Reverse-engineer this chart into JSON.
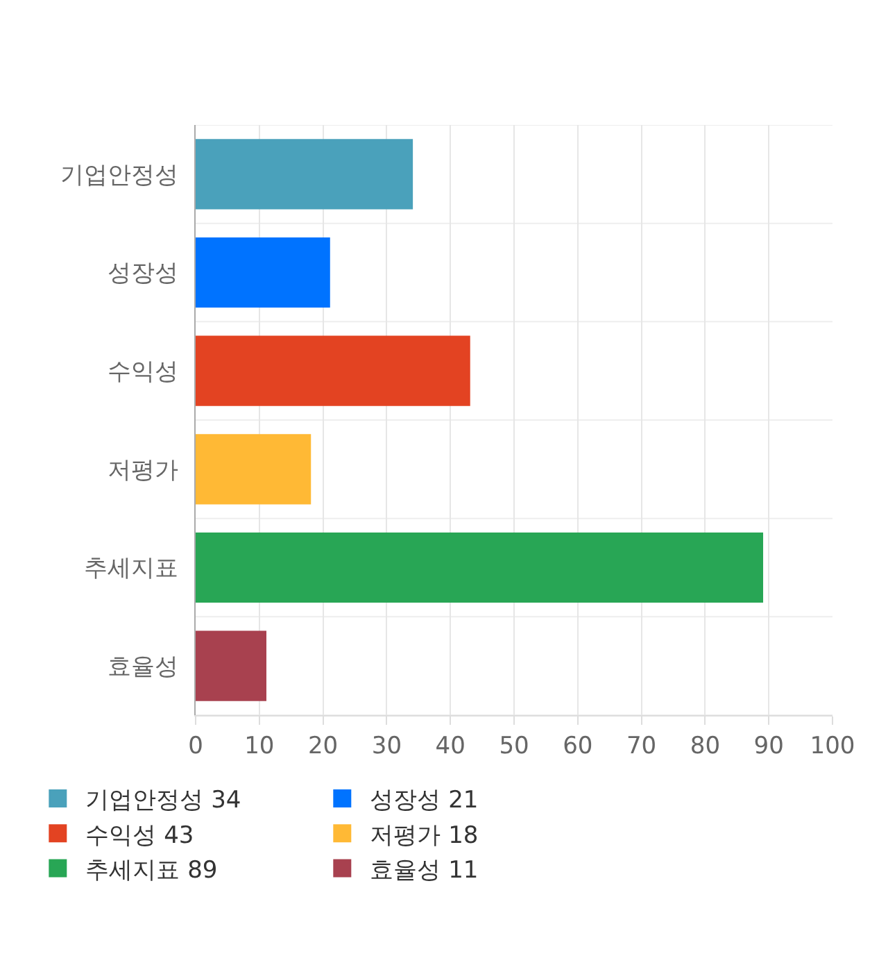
{
  "chart_data": {
    "type": "bar",
    "orientation": "horizontal",
    "stacked": true,
    "categories": [
      "기업안정성",
      "성장성",
      "수익성",
      "저평가",
      "추세지표",
      "효율성"
    ],
    "series": [
      {
        "name": "기업안정성 34",
        "color": "#4aa1bb",
        "values": [
          34,
          null,
          null,
          null,
          null,
          null
        ]
      },
      {
        "name": "성장성 21",
        "color": "#0073ff",
        "values": [
          null,
          21,
          null,
          null,
          null,
          null
        ]
      },
      {
        "name": "수익성 43",
        "color": "#e34322",
        "values": [
          null,
          null,
          43,
          null,
          null,
          null
        ]
      },
      {
        "name": "저평가 18",
        "color": "#ffb935",
        "values": [
          null,
          null,
          null,
          18,
          null,
          null
        ]
      },
      {
        "name": "추세지표 89",
        "color": "#28a655",
        "values": [
          null,
          null,
          null,
          null,
          89,
          null
        ]
      },
      {
        "name": "효율성 11",
        "color": "#a8414f",
        "values": [
          null,
          null,
          null,
          null,
          null,
          11
        ]
      }
    ],
    "xlim": [
      0,
      100
    ],
    "xticks": [
      0,
      10,
      20,
      30,
      40,
      50,
      60,
      70,
      80,
      90,
      100
    ],
    "grid": true,
    "legend": "bottom"
  }
}
